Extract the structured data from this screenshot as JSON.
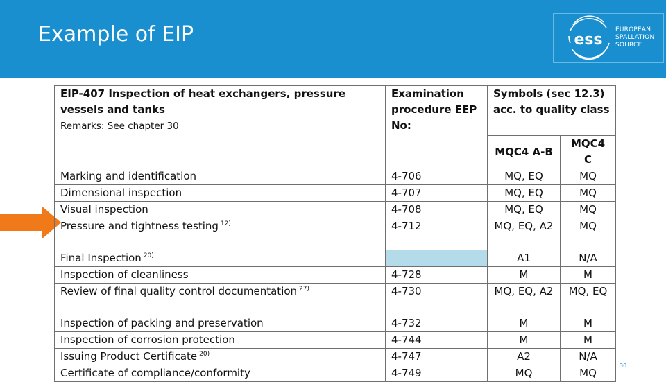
{
  "slide": {
    "title": "Example of EIP",
    "page_number": "30"
  },
  "logo": {
    "mark": "ess",
    "line1": "EUROPEAN",
    "line2": "SPALLATION",
    "line3": "SOURCE"
  },
  "colors": {
    "header_blue": "#1a8fd0",
    "arrow_orange": "#f07a1a",
    "shaded_cell": "#b3dbe9"
  },
  "arrow": {
    "icon": "arrow-right-icon",
    "points_to_row": "Pressure and tightness testing"
  },
  "table": {
    "header": {
      "title": "EIP-407 Inspection of heat exchangers, pressure vessels and tanks",
      "remarks": "Remarks: See chapter 30",
      "procedure": "Examination procedure EEP No:",
      "symbols": "Symbols (sec 12.3) acc. to quality class",
      "class_ab": "MQC4 A-B",
      "class_c": "MQC4 C"
    },
    "rows": [
      {
        "name": "Marking and identification",
        "note": "",
        "eep": "4-706",
        "ab": "MQ, EQ",
        "c": "MQ"
      },
      {
        "name": "Dimensional inspection",
        "note": "",
        "eep": "4-707",
        "ab": "MQ, EQ",
        "c": "MQ"
      },
      {
        "name": "Visual inspection",
        "note": "",
        "eep": "4-708",
        "ab": "MQ, EQ",
        "c": "MQ"
      },
      {
        "name": "Pressure and tightness testing",
        "note": "12)",
        "eep": "4-712",
        "ab": "MQ, EQ, A2",
        "c": "MQ"
      },
      {
        "name": "Final Inspection",
        "note": "20)",
        "eep": "",
        "ab": "A1",
        "c": "N/A"
      },
      {
        "name": "Inspection of cleanliness",
        "note": "",
        "eep": "4-728",
        "ab": "M",
        "c": "M"
      },
      {
        "name": "Review of final quality control documentation",
        "note": "27)",
        "eep": "4-730",
        "ab": "MQ, EQ, A2",
        "c": "MQ, EQ"
      },
      {
        "name": "Inspection of packing and preservation",
        "note": "",
        "eep": "4-732",
        "ab": "M",
        "c": "M"
      },
      {
        "name": "Inspection of corrosion protection",
        "note": "",
        "eep": "4-744",
        "ab": "M",
        "c": "M"
      },
      {
        "name": "Issuing Product Certificate",
        "note": "20)",
        "eep": "4-747",
        "ab": "A2",
        "c": "N/A"
      },
      {
        "name": "Certificate of compliance/conformity",
        "note": "",
        "eep": "4-749",
        "ab": "MQ",
        "c": "MQ"
      }
    ]
  }
}
